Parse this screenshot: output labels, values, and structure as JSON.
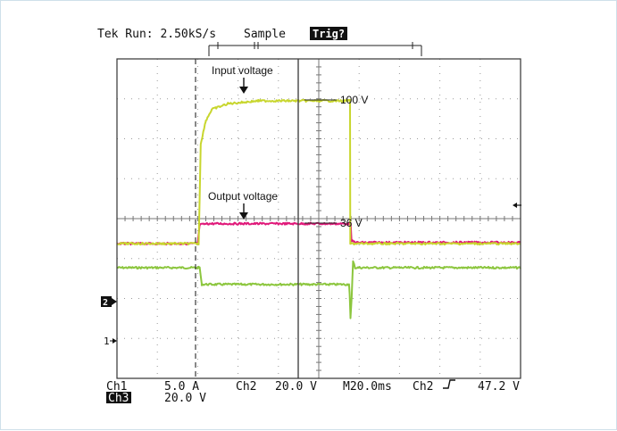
{
  "header": {
    "left": "Tek Run: 2.50kS/s",
    "mode": "Sample",
    "trig_badge": "Trig?"
  },
  "annotations": {
    "input_voltage": "Input voltage",
    "output_voltage": "Output voltage",
    "level_100v": "100 V",
    "level_36v": "36 V"
  },
  "markers": {
    "ch2": "2",
    "ch1": "1"
  },
  "readout": {
    "ch1_label": "Ch1",
    "ch1_scale": "5.0 A",
    "ch2_label": "Ch2",
    "ch2_scale": "20.0 V",
    "timebase": "M20.0ms",
    "trigger_source": "Ch2",
    "trigger_level": "47.2 V",
    "ch3_label": "Ch3",
    "ch3_scale": "20.0 V"
  },
  "colors": {
    "input_trace": "#c8d62e",
    "output_trace": "#e0197a",
    "ch1_trace": "#8cc63e",
    "graticule": "#9a9a9a",
    "frame": "#333333"
  },
  "chart_data": {
    "type": "line",
    "title": "",
    "xlabel": "",
    "ylabel": "",
    "x_unit": "ms",
    "x_range": [
      0,
      200
    ],
    "series": [
      {
        "name": "Input voltage",
        "channel": "Ch3",
        "unit": "V",
        "points": [
          [
            0,
            0
          ],
          [
            40,
            0
          ],
          [
            40.5,
            0
          ],
          [
            41.5,
            70
          ],
          [
            44,
            86
          ],
          [
            47,
            94
          ],
          [
            55,
            98
          ],
          [
            70,
            100
          ],
          [
            100,
            100
          ],
          [
            115,
            100
          ],
          [
            115.5,
            100
          ],
          [
            115.6,
            0
          ],
          [
            200,
            0
          ]
        ]
      },
      {
        "name": "Output voltage",
        "channel": "Ch2",
        "unit": "V",
        "points": [
          [
            0,
            0
          ],
          [
            40,
            0
          ],
          [
            41,
            34
          ],
          [
            45,
            36
          ],
          [
            115,
            36
          ],
          [
            115.8,
            36
          ],
          [
            116.2,
            5
          ],
          [
            119,
            2
          ],
          [
            200,
            2
          ]
        ]
      },
      {
        "name": "",
        "channel": "Ch1",
        "unit": "A",
        "points": [
          [
            0,
            0
          ],
          [
            40,
            0
          ],
          [
            41,
            0
          ],
          [
            42,
            -5.5
          ],
          [
            115,
            -5.5
          ],
          [
            115.3,
            -9
          ],
          [
            115.7,
            -16.5
          ],
          [
            116.3,
            -10
          ],
          [
            117,
            2
          ],
          [
            118,
            0
          ],
          [
            200,
            0
          ]
        ]
      }
    ]
  }
}
